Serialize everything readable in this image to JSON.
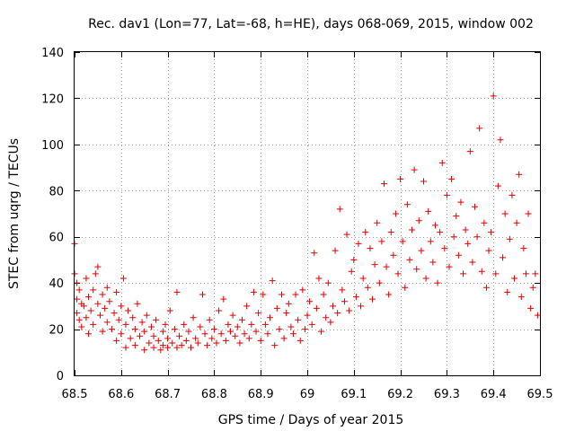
{
  "chart_data": {
    "type": "scatter",
    "title": "Rec. dav1 (Lon=77, Lat=-68, h=HE), days 068-069, 2015, window 002",
    "xlabel": "GPS time / Days of year 2015",
    "ylabel": "STEC from uqrg / TECUs",
    "xlim": [
      68.5,
      69.5
    ],
    "ylim": [
      0,
      140
    ],
    "xticks": [
      68.5,
      68.6,
      68.7,
      68.8,
      68.9,
      69,
      69.1,
      69.2,
      69.3,
      69.4,
      69.5
    ],
    "xtick_labels": [
      "68.5",
      "68.6",
      "68.7",
      "68.8",
      "68.9",
      "69",
      "69.1",
      "69.2",
      "69.3",
      "69.4",
      "69.5"
    ],
    "yticks": [
      0,
      20,
      40,
      60,
      80,
      100,
      120,
      140
    ],
    "ytick_labels": [
      "0",
      "20",
      "40",
      "60",
      "80",
      "100",
      "120",
      "140"
    ],
    "grid": true,
    "marker": "+",
    "color": "#e00000",
    "series": [
      {
        "name": "STEC",
        "points": [
          [
            68.5,
            57
          ],
          [
            68.5,
            44
          ],
          [
            68.505,
            40
          ],
          [
            68.505,
            33
          ],
          [
            68.505,
            27
          ],
          [
            68.51,
            24
          ],
          [
            68.51,
            37
          ],
          [
            68.515,
            31
          ],
          [
            68.515,
            21
          ],
          [
            68.52,
            30
          ],
          [
            68.525,
            42
          ],
          [
            68.525,
            25
          ],
          [
            68.53,
            34
          ],
          [
            68.53,
            18
          ],
          [
            68.535,
            28
          ],
          [
            68.54,
            22
          ],
          [
            68.54,
            37
          ],
          [
            68.545,
            44
          ],
          [
            68.55,
            47
          ],
          [
            68.55,
            31
          ],
          [
            68.555,
            26
          ],
          [
            68.56,
            19
          ],
          [
            68.56,
            35
          ],
          [
            68.565,
            29
          ],
          [
            68.57,
            23
          ],
          [
            68.57,
            38
          ],
          [
            68.575,
            32
          ],
          [
            68.58,
            20
          ],
          [
            68.585,
            27
          ],
          [
            68.59,
            36
          ],
          [
            68.59,
            15
          ],
          [
            68.595,
            24
          ],
          [
            68.6,
            30
          ],
          [
            68.6,
            18
          ],
          [
            68.605,
            42
          ],
          [
            68.61,
            22
          ],
          [
            68.61,
            12
          ],
          [
            68.615,
            28
          ],
          [
            68.62,
            16
          ],
          [
            68.625,
            25
          ],
          [
            68.63,
            20
          ],
          [
            68.63,
            13
          ],
          [
            68.635,
            31
          ],
          [
            68.64,
            17
          ],
          [
            68.645,
            23
          ],
          [
            68.65,
            11
          ],
          [
            68.65,
            19
          ],
          [
            68.655,
            26
          ],
          [
            68.66,
            14
          ],
          [
            68.665,
            21
          ],
          [
            68.67,
            12
          ],
          [
            68.67,
            17
          ],
          [
            68.675,
            24
          ],
          [
            68.68,
            15
          ],
          [
            68.685,
            11
          ],
          [
            68.69,
            19
          ],
          [
            68.69,
            13
          ],
          [
            68.695,
            22
          ],
          [
            68.7,
            12
          ],
          [
            68.7,
            16
          ],
          [
            68.705,
            28
          ],
          [
            68.71,
            14
          ],
          [
            68.715,
            20
          ],
          [
            68.72,
            12
          ],
          [
            68.72,
            36
          ],
          [
            68.725,
            17
          ],
          [
            68.73,
            13
          ],
          [
            68.735,
            22
          ],
          [
            68.74,
            15
          ],
          [
            68.745,
            19
          ],
          [
            68.75,
            12
          ],
          [
            68.755,
            25
          ],
          [
            68.76,
            16
          ],
          [
            68.765,
            14
          ],
          [
            68.77,
            21
          ],
          [
            68.775,
            35
          ],
          [
            68.78,
            18
          ],
          [
            68.785,
            13
          ],
          [
            68.79,
            24
          ],
          [
            68.795,
            16
          ],
          [
            68.8,
            20
          ],
          [
            68.805,
            14
          ],
          [
            68.81,
            28
          ],
          [
            68.815,
            18
          ],
          [
            68.82,
            33
          ],
          [
            68.825,
            15
          ],
          [
            68.83,
            22
          ],
          [
            68.835,
            19
          ],
          [
            68.84,
            26
          ],
          [
            68.845,
            17
          ],
          [
            68.85,
            21
          ],
          [
            68.855,
            14
          ],
          [
            68.86,
            24
          ],
          [
            68.865,
            18
          ],
          [
            68.87,
            30
          ],
          [
            68.875,
            16
          ],
          [
            68.88,
            22
          ],
          [
            68.885,
            36
          ],
          [
            68.89,
            19
          ],
          [
            68.895,
            27
          ],
          [
            68.9,
            15
          ],
          [
            68.905,
            35
          ],
          [
            68.91,
            22
          ],
          [
            68.915,
            18
          ],
          [
            68.92,
            25
          ],
          [
            68.925,
            41
          ],
          [
            68.93,
            13
          ],
          [
            68.935,
            29
          ],
          [
            68.94,
            20
          ],
          [
            68.945,
            35
          ],
          [
            68.95,
            16
          ],
          [
            68.955,
            27
          ],
          [
            68.96,
            31
          ],
          [
            68.965,
            21
          ],
          [
            68.97,
            18
          ],
          [
            68.975,
            35
          ],
          [
            68.98,
            24
          ],
          [
            68.985,
            15
          ],
          [
            68.99,
            37
          ],
          [
            68.995,
            20
          ],
          [
            69.0,
            26
          ],
          [
            69.005,
            32
          ],
          [
            69.01,
            22
          ],
          [
            69.015,
            53
          ],
          [
            69.02,
            29
          ],
          [
            69.025,
            42
          ],
          [
            69.03,
            19
          ],
          [
            69.035,
            35
          ],
          [
            69.04,
            25
          ],
          [
            69.045,
            40
          ],
          [
            69.05,
            23
          ],
          [
            69.055,
            30
          ],
          [
            69.06,
            54
          ],
          [
            69.065,
            27
          ],
          [
            69.07,
            72
          ],
          [
            69.075,
            37
          ],
          [
            69.08,
            32
          ],
          [
            69.085,
            61
          ],
          [
            69.09,
            28
          ],
          [
            69.095,
            45
          ],
          [
            69.1,
            50
          ],
          [
            69.105,
            34
          ],
          [
            69.11,
            57
          ],
          [
            69.115,
            30
          ],
          [
            69.12,
            42
          ],
          [
            69.125,
            62
          ],
          [
            69.13,
            38
          ],
          [
            69.135,
            55
          ],
          [
            69.14,
            33
          ],
          [
            69.145,
            48
          ],
          [
            69.15,
            66
          ],
          [
            69.155,
            40
          ],
          [
            69.16,
            58
          ],
          [
            69.165,
            83
          ],
          [
            69.17,
            47
          ],
          [
            69.175,
            35
          ],
          [
            69.18,
            62
          ],
          [
            69.185,
            52
          ],
          [
            69.19,
            70
          ],
          [
            69.195,
            44
          ],
          [
            69.2,
            85
          ],
          [
            69.205,
            58
          ],
          [
            69.21,
            38
          ],
          [
            69.215,
            74
          ],
          [
            69.22,
            50
          ],
          [
            69.225,
            63
          ],
          [
            69.23,
            89
          ],
          [
            69.235,
            46
          ],
          [
            69.24,
            67
          ],
          [
            69.245,
            54
          ],
          [
            69.25,
            84
          ],
          [
            69.255,
            42
          ],
          [
            69.26,
            71
          ],
          [
            69.265,
            58
          ],
          [
            69.27,
            49
          ],
          [
            69.275,
            65
          ],
          [
            69.28,
            40
          ],
          [
            69.285,
            62
          ],
          [
            69.29,
            92
          ],
          [
            69.295,
            55
          ],
          [
            69.3,
            78
          ],
          [
            69.305,
            47
          ],
          [
            69.31,
            85
          ],
          [
            69.315,
            60
          ],
          [
            69.32,
            69
          ],
          [
            69.325,
            52
          ],
          [
            69.33,
            75
          ],
          [
            69.335,
            44
          ],
          [
            69.34,
            63
          ],
          [
            69.345,
            57
          ],
          [
            69.35,
            97
          ],
          [
            69.355,
            49
          ],
          [
            69.36,
            73
          ],
          [
            69.365,
            60
          ],
          [
            69.37,
            107
          ],
          [
            69.375,
            45
          ],
          [
            69.38,
            66
          ],
          [
            69.385,
            38
          ],
          [
            69.39,
            54
          ],
          [
            69.395,
            62
          ],
          [
            69.4,
            121
          ],
          [
            69.405,
            44
          ],
          [
            69.41,
            82
          ],
          [
            69.415,
            102
          ],
          [
            69.42,
            51
          ],
          [
            69.425,
            70
          ],
          [
            69.43,
            36
          ],
          [
            69.435,
            59
          ],
          [
            69.44,
            78
          ],
          [
            69.445,
            42
          ],
          [
            69.45,
            66
          ],
          [
            69.455,
            87
          ],
          [
            69.46,
            34
          ],
          [
            69.465,
            55
          ],
          [
            69.47,
            44
          ],
          [
            69.475,
            70
          ],
          [
            69.48,
            29
          ],
          [
            69.485,
            38
          ],
          [
            69.49,
            44
          ],
          [
            69.495,
            26
          ]
        ]
      }
    ]
  }
}
